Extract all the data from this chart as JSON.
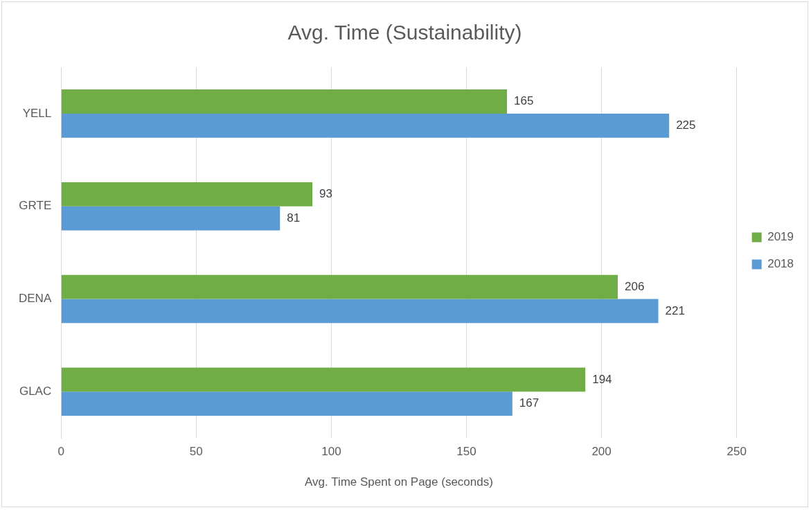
{
  "chart_data": {
    "type": "bar",
    "orientation": "horizontal",
    "title": "Avg. Time (Sustainability)",
    "xlabel": "Avg. Time Spent on Page (seconds)",
    "categories": [
      "YELL",
      "GRTE",
      "DENA",
      "GLAC"
    ],
    "series": [
      {
        "name": "2019",
        "color": "#70ad47",
        "values": [
          165,
          93,
          206,
          194
        ]
      },
      {
        "name": "2018",
        "color": "#5b9bd5",
        "values": [
          225,
          81,
          221,
          167
        ]
      }
    ],
    "xlim": [
      0,
      250
    ],
    "xticks": [
      0,
      50,
      100,
      150,
      200,
      250
    ],
    "grid": "x",
    "legend": "right",
    "data_labels": true
  }
}
